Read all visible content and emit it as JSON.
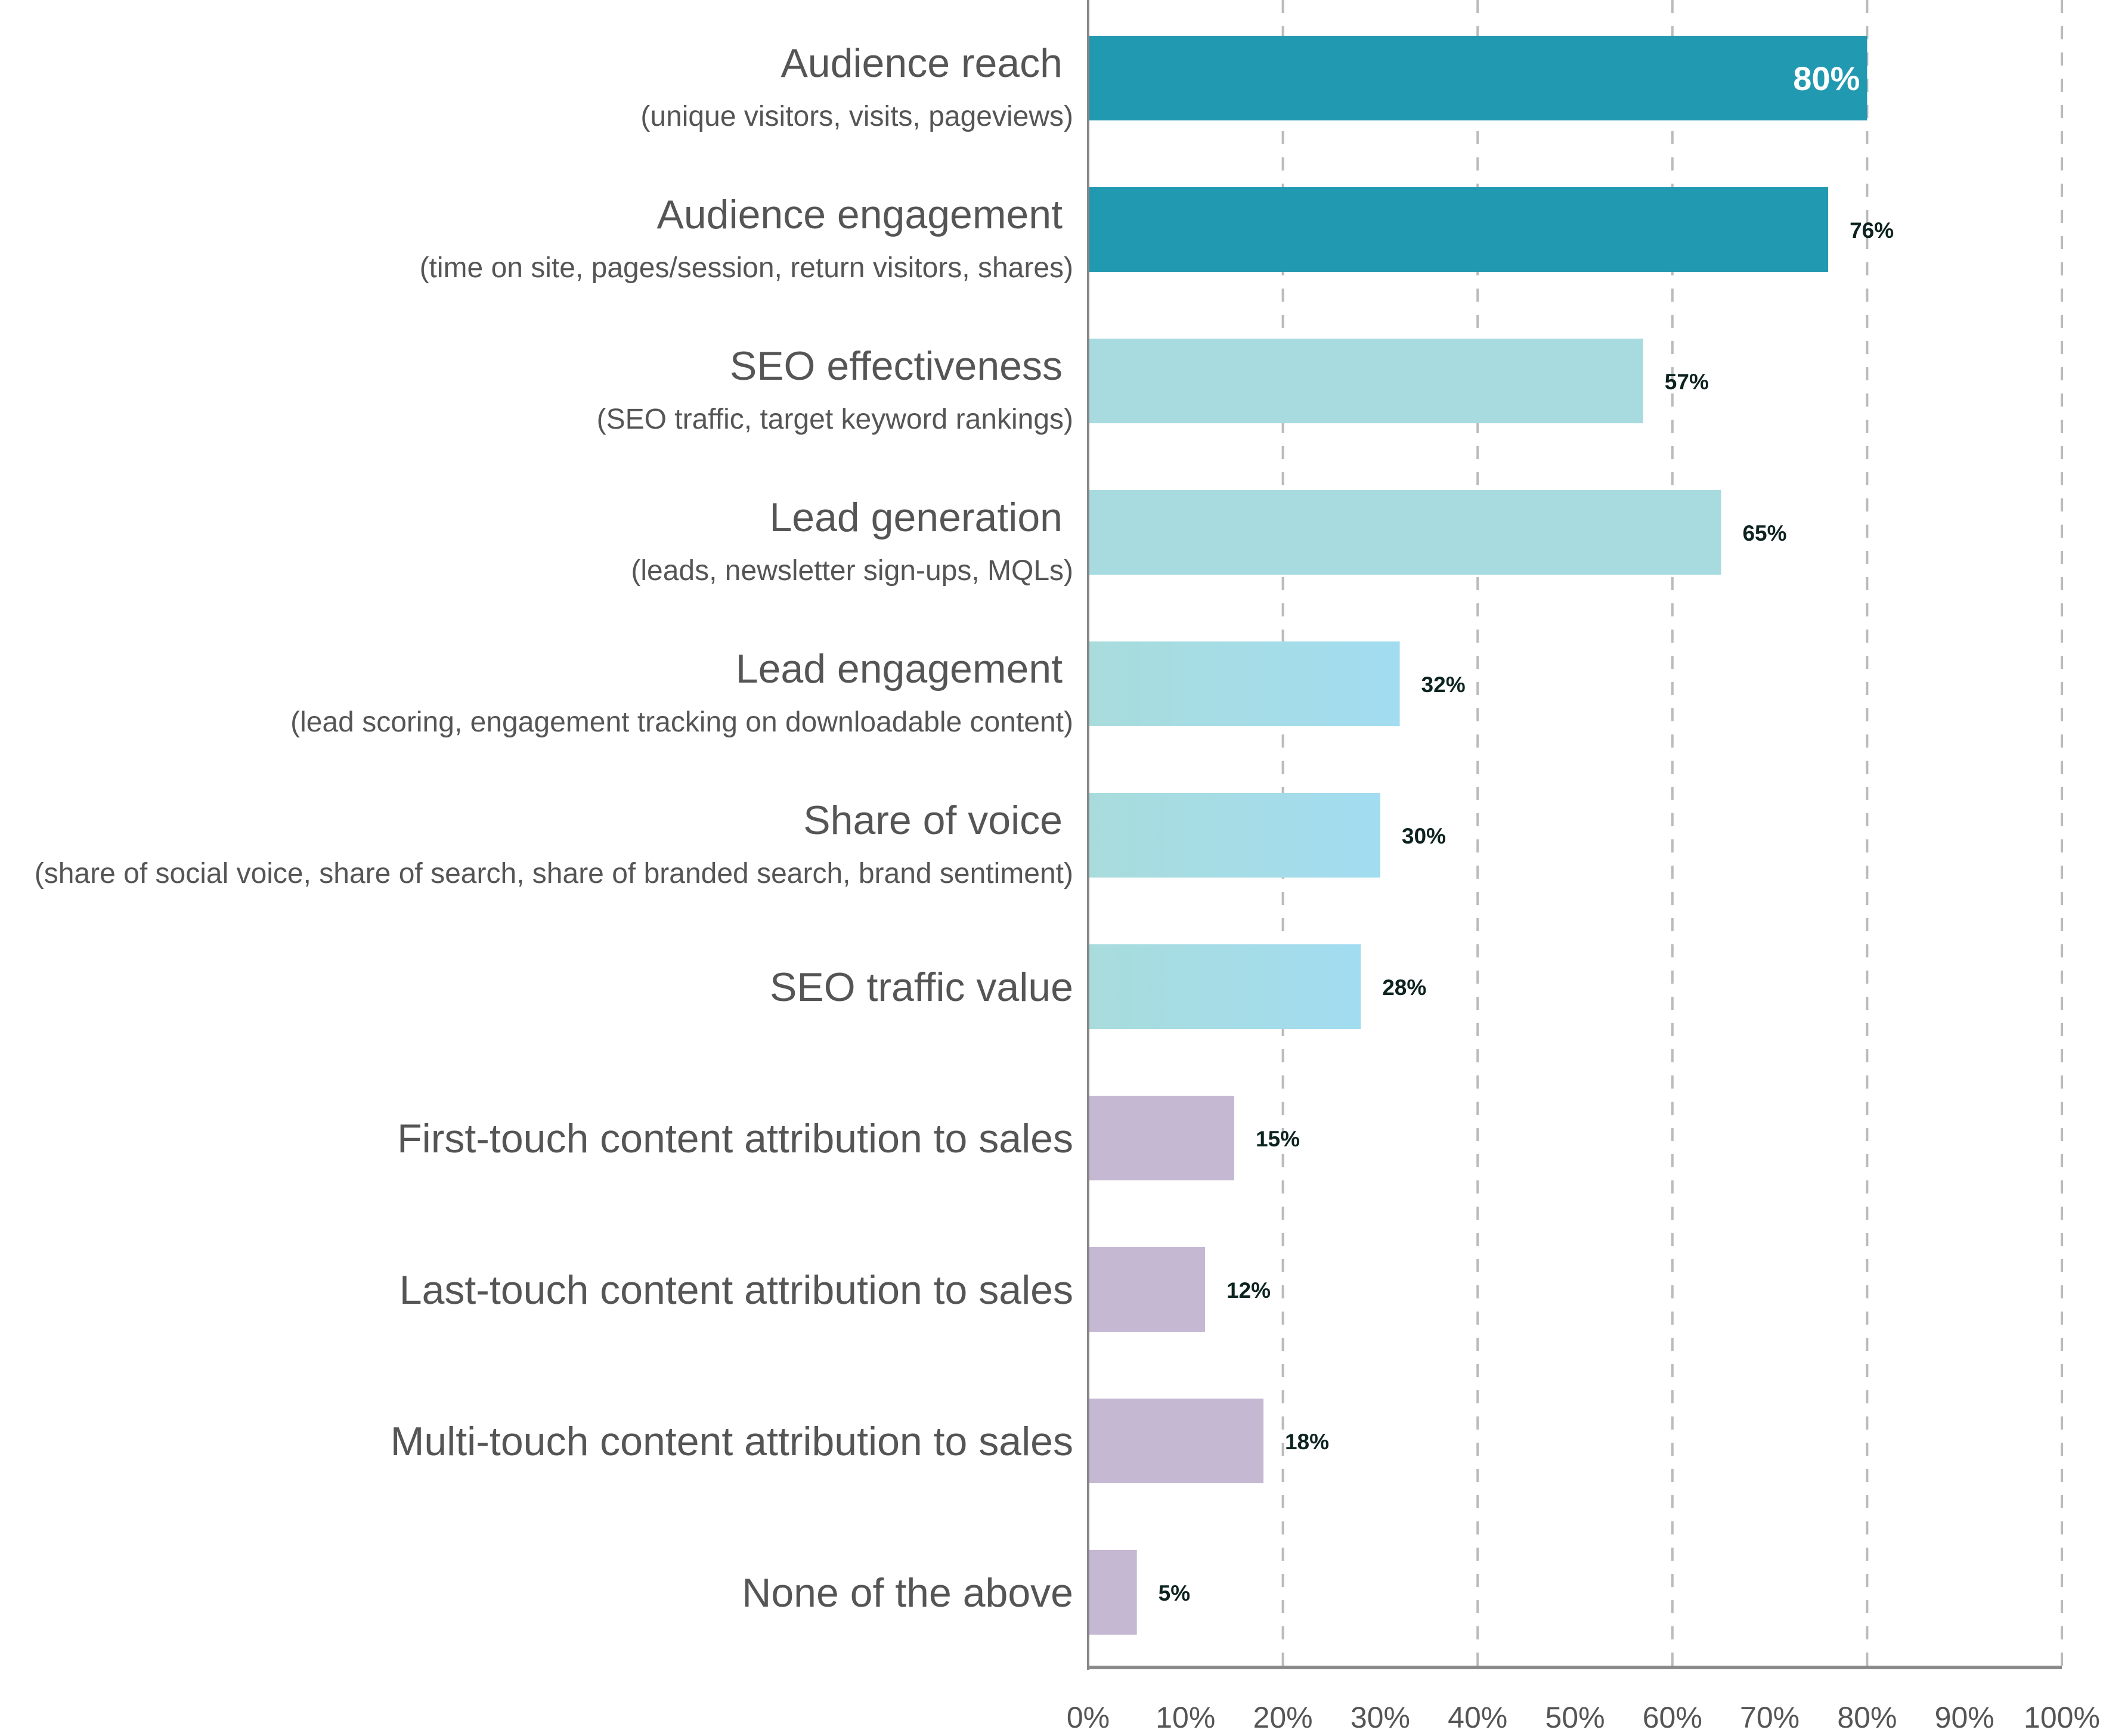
{
  "chart_data": {
    "type": "bar",
    "orientation": "horizontal",
    "categories": [
      {
        "label": "Audience reach",
        "sublabel": "(unique visitors, visits, pageviews)",
        "value": 80,
        "color": "#2199b0"
      },
      {
        "label": "Audience engagement",
        "sublabel": "(time on site, pages/session, return visitors, shares)",
        "value": 76,
        "color": "#2199b0"
      },
      {
        "label": "SEO effectiveness",
        "sublabel": "(SEO traffic, target keyword rankings)",
        "value": 57,
        "color": "#a7dbdf"
      },
      {
        "label": "Lead generation",
        "sublabel": "(leads, newsletter sign-ups, MQLs)",
        "value": 65,
        "color": "#a7dbdf"
      },
      {
        "label": "Lead engagement",
        "sublabel": "(lead scoring, engagement tracking on downloadable content)",
        "value": 32,
        "color": "gradient"
      },
      {
        "label": "Share of voice",
        "sublabel": "(share of social voice, share of search, share of branded search, brand sentiment)",
        "value": 30,
        "color": "gradient"
      },
      {
        "label": "SEO traffic value",
        "sublabel": "",
        "value": 28,
        "color": "gradient"
      },
      {
        "label": "First-touch content attribution to sales",
        "sublabel": "",
        "value": 15,
        "color": "#c5b8d3"
      },
      {
        "label": "Last-touch content attribution to sales",
        "sublabel": "",
        "value": 12,
        "color": "#c5b8d3"
      },
      {
        "label": "Multi-touch content attribution to sales",
        "sublabel": "",
        "value": 18,
        "color": "#c5b8d3"
      },
      {
        "label": "None of the above",
        "sublabel": "",
        "value": 5,
        "color": "#c5b8d3"
      }
    ],
    "value_labels": [
      "80%",
      "76%",
      "57%",
      "65%",
      "32%",
      "30%",
      "28%",
      "15%",
      "12%",
      "18%",
      "5%"
    ],
    "xticks": [
      "0%",
      "10%",
      "20%",
      "30%",
      "40%",
      "50%",
      "60%",
      "70%",
      "80%",
      "90%",
      "100%"
    ],
    "xlim": [
      0,
      100
    ],
    "grid": "dashed vertical at 20% intervals",
    "gradient_colors": [
      "#a8dcdc",
      "#a2dcf0"
    ],
    "title": "",
    "xlabel": "",
    "ylabel": ""
  }
}
